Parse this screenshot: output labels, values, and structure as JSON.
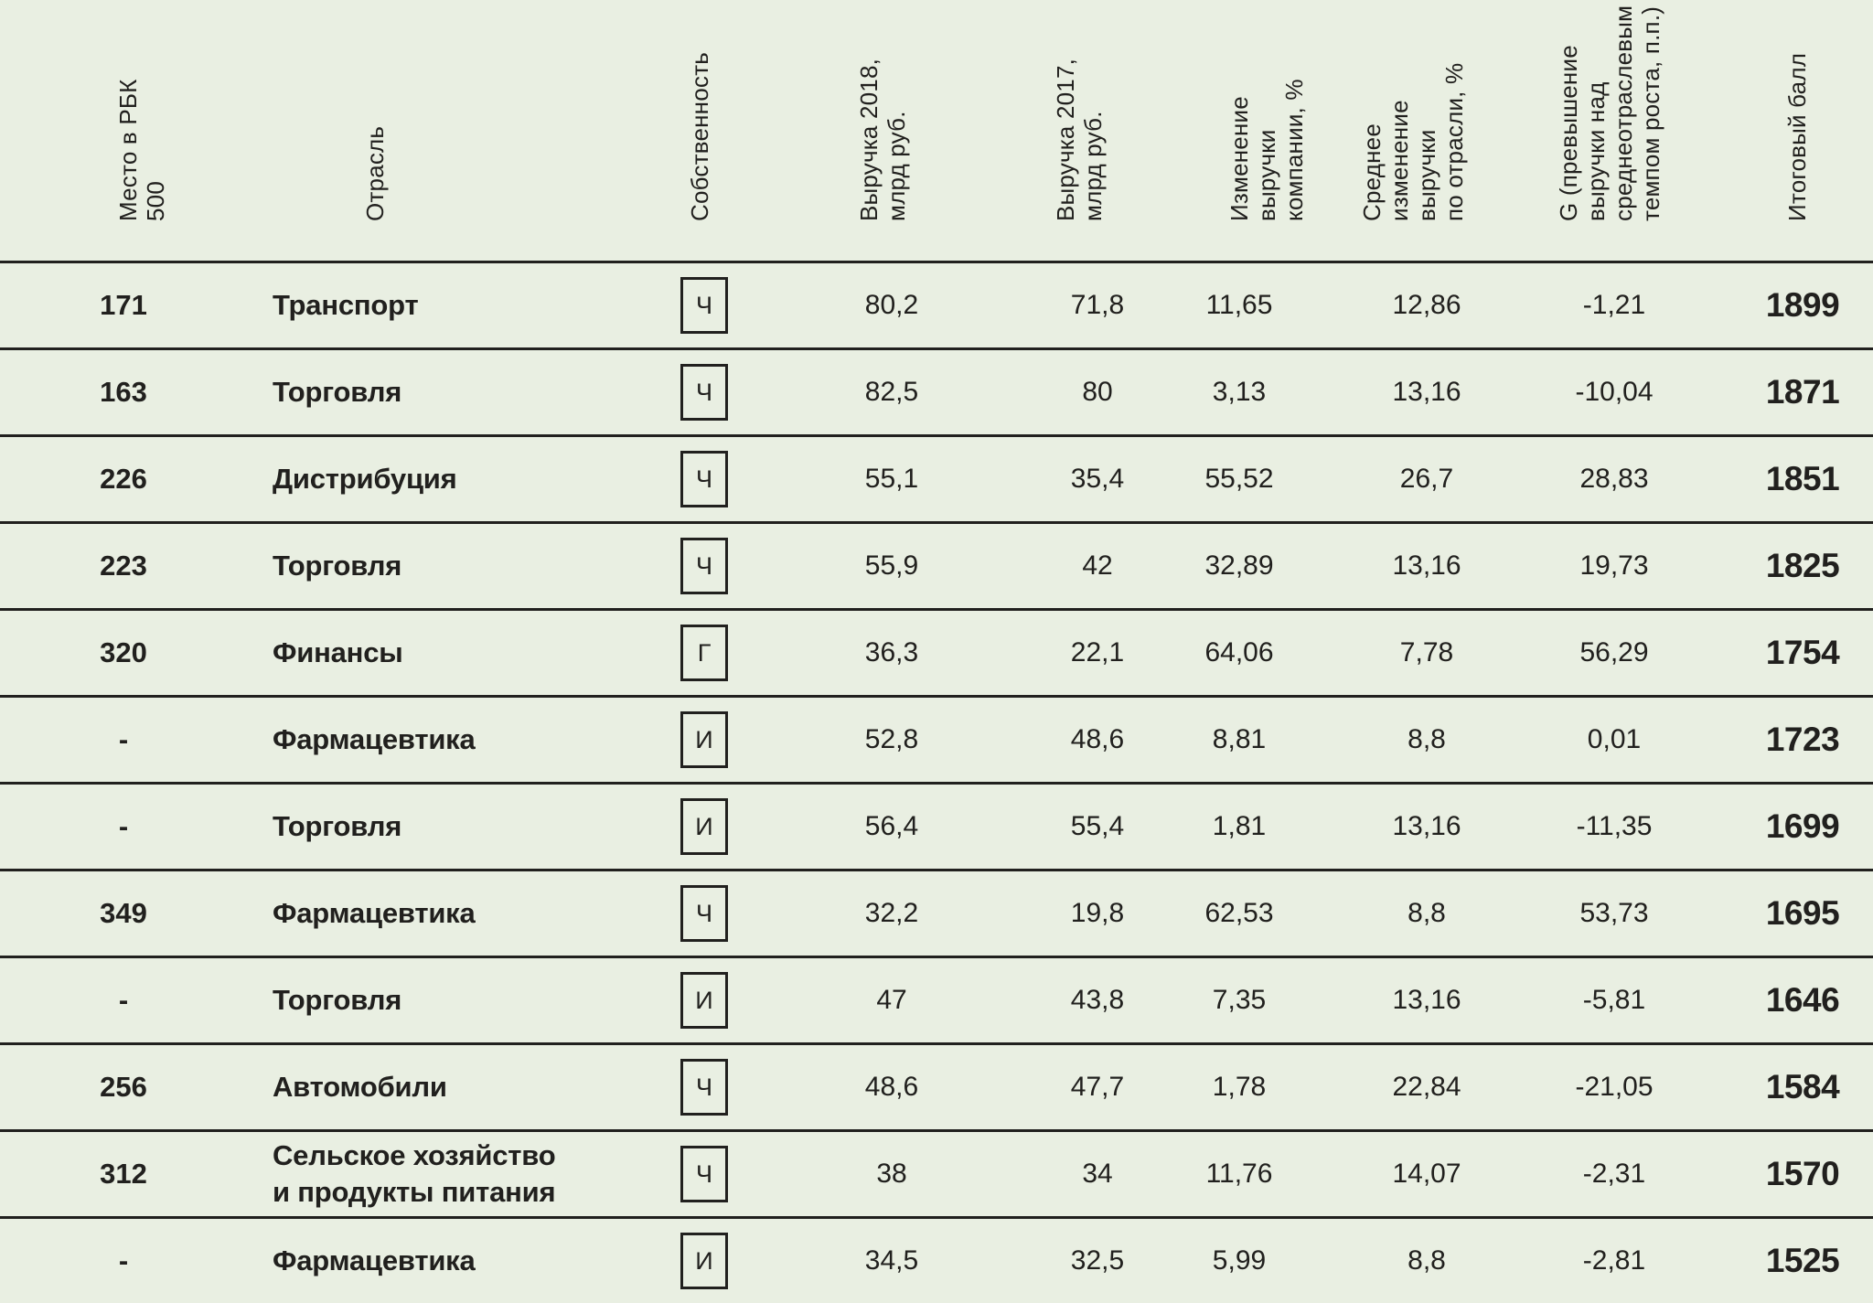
{
  "colors": {
    "background": "#e9efe2",
    "line": "#21201e",
    "text": "#21201e"
  },
  "table": {
    "columns": [
      {
        "label": "Место в РБК\n500"
      },
      {
        "label": "Отрасль"
      },
      {
        "label": "Собственность"
      },
      {
        "label": "Выручка 2018,\nмлрд руб."
      },
      {
        "label": "Выручка 2017,\nмлрд руб."
      },
      {
        "label": "Изменение\nвыручки\nкомпании, %"
      },
      {
        "label": "Среднее\nизменение\nвыручки\nпо отрасли, %"
      },
      {
        "label": "G (превышение\nвыручки над\nсреднеотраслевым\nтемпом роста, п.п.)"
      },
      {
        "label": "Итоговый балл"
      }
    ],
    "rows": [
      {
        "rank": "171",
        "industry": "Транспорт",
        "ownership": "Ч",
        "rev2018": "80,2",
        "rev2017": "71,8",
        "change": "11,65",
        "industry_avg": "12,86",
        "g": "-1,21",
        "score": "1899"
      },
      {
        "rank": "163",
        "industry": "Торговля",
        "ownership": "Ч",
        "rev2018": "82,5",
        "rev2017": "80",
        "change": "3,13",
        "industry_avg": "13,16",
        "g": "-10,04",
        "score": "1871"
      },
      {
        "rank": "226",
        "industry": "Дистрибуция",
        "ownership": "Ч",
        "rev2018": "55,1",
        "rev2017": "35,4",
        "change": "55,52",
        "industry_avg": "26,7",
        "g": "28,83",
        "score": "1851"
      },
      {
        "rank": "223",
        "industry": "Торговля",
        "ownership": "Ч",
        "rev2018": "55,9",
        "rev2017": "42",
        "change": "32,89",
        "industry_avg": "13,16",
        "g": "19,73",
        "score": "1825"
      },
      {
        "rank": "320",
        "industry": "Финансы",
        "ownership": "Г",
        "rev2018": "36,3",
        "rev2017": "22,1",
        "change": "64,06",
        "industry_avg": "7,78",
        "g": "56,29",
        "score": "1754"
      },
      {
        "rank": "-",
        "industry": "Фармацевтика",
        "ownership": "И",
        "rev2018": "52,8",
        "rev2017": "48,6",
        "change": "8,81",
        "industry_avg": "8,8",
        "g": "0,01",
        "score": "1723"
      },
      {
        "rank": "-",
        "industry": "Торговля",
        "ownership": "И",
        "rev2018": "56,4",
        "rev2017": "55,4",
        "change": "1,81",
        "industry_avg": "13,16",
        "g": "-11,35",
        "score": "1699"
      },
      {
        "rank": "349",
        "industry": "Фармацевтика",
        "ownership": "Ч",
        "rev2018": "32,2",
        "rev2017": "19,8",
        "change": "62,53",
        "industry_avg": "8,8",
        "g": "53,73",
        "score": "1695"
      },
      {
        "rank": "-",
        "industry": "Торговля",
        "ownership": "И",
        "rev2018": "47",
        "rev2017": "43,8",
        "change": "7,35",
        "industry_avg": "13,16",
        "g": "-5,81",
        "score": "1646"
      },
      {
        "rank": "256",
        "industry": "Автомобили",
        "ownership": "Ч",
        "rev2018": "48,6",
        "rev2017": "47,7",
        "change": "1,78",
        "industry_avg": "22,84",
        "g": "-21,05",
        "score": "1584"
      },
      {
        "rank": "312",
        "industry": "Сельское хозяйство\nи продукты питания",
        "ownership": "Ч",
        "rev2018": "38",
        "rev2017": "34",
        "change": "11,76",
        "industry_avg": "14,07",
        "g": "-2,31",
        "score": "1570"
      },
      {
        "rank": "-",
        "industry": "Фармацевтика",
        "ownership": "И",
        "rev2018": "34,5",
        "rev2017": "32,5",
        "change": "5,99",
        "industry_avg": "8,8",
        "g": "-2,81",
        "score": "1525"
      }
    ]
  }
}
